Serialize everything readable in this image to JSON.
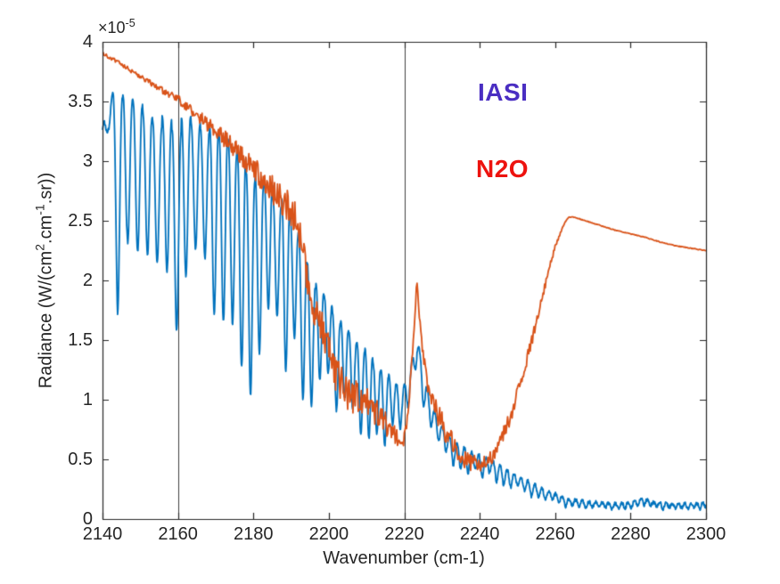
{
  "figure": {
    "background_color": "#ffffff",
    "axes_color": "#262626",
    "marker_line_color": "#404040",
    "offset_label": "×10^-5",
    "offset_parts": [
      {
        "t": "×10"
      },
      {
        "t": "-5",
        "sup": true
      }
    ]
  },
  "chart_data": {
    "type": "line",
    "title": "",
    "xlabel": "Wavenumber (cm-1)",
    "ylabel": "Radiance (W/(cm^2.cm^-1.sr))",
    "ylabel_parts": [
      {
        "t": "Radiance (W/(cm"
      },
      {
        "t": "2",
        "sup": true
      },
      {
        "t": ".cm"
      },
      {
        "t": "-1",
        "sup": true
      },
      {
        "t": ".sr))"
      }
    ],
    "xlim": [
      2140,
      2300
    ],
    "ylim": [
      0,
      4e-05
    ],
    "ylim_display": [
      0,
      4
    ],
    "y_value_scale": "1e-5",
    "x_ticks": [
      2140,
      2160,
      2180,
      2200,
      2220,
      2240,
      2260,
      2280,
      2300
    ],
    "y_ticks": [
      0,
      0.5,
      1,
      1.5,
      2,
      2.5,
      3,
      3.5,
      4
    ],
    "y_tick_labels": [
      "0",
      "0.5",
      "1",
      "1.5",
      "2",
      "2.5",
      "3",
      "3.5",
      "4"
    ],
    "grid": false,
    "box": true,
    "tick_direction": "in",
    "vertical_marker_lines_x": [
      2160,
      2220
    ],
    "legend": {
      "position": "inside-upper-center-right",
      "entries": [
        {
          "label": "IASI",
          "color": "#4a2ec2"
        },
        {
          "label": "N2O",
          "color": "#ed130f"
        }
      ]
    },
    "series": [
      {
        "name": "IASI",
        "color": "#0072BD",
        "line_width": 1.8,
        "units": "1e-5 W/(cm2.cm-1.sr)",
        "representation": "upper/lower envelope with quasi-periodic absorption dips",
        "upper_envelope": [
          [
            2140,
            3.3
          ],
          [
            2141.5,
            3.62
          ],
          [
            2144,
            3.67
          ],
          [
            2146.5,
            3.6
          ],
          [
            2149,
            3.55
          ],
          [
            2152,
            3.5
          ],
          [
            2155,
            3.42
          ],
          [
            2158,
            3.38
          ],
          [
            2161,
            3.36
          ],
          [
            2164,
            3.37
          ],
          [
            2167,
            3.33
          ],
          [
            2170,
            3.3
          ],
          [
            2173,
            3.24
          ],
          [
            2176,
            3.1
          ],
          [
            2179,
            3.0
          ],
          [
            2182,
            2.9
          ],
          [
            2185,
            2.82
          ],
          [
            2188,
            2.72
          ],
          [
            2191,
            2.55
          ],
          [
            2193,
            2.4
          ],
          [
            2196,
            2.05
          ],
          [
            2199,
            1.9
          ],
          [
            2202,
            1.76
          ],
          [
            2205,
            1.62
          ],
          [
            2208,
            1.48
          ],
          [
            2211,
            1.38
          ],
          [
            2214,
            1.28
          ],
          [
            2217,
            1.18
          ],
          [
            2219.5,
            1.08
          ],
          [
            2221.5,
            1.25
          ],
          [
            2223.4,
            1.56
          ],
          [
            2225,
            1.22
          ],
          [
            2227,
            1.0
          ],
          [
            2229,
            0.85
          ],
          [
            2231,
            0.73
          ],
          [
            2234,
            0.64
          ],
          [
            2237,
            0.58
          ],
          [
            2240,
            0.54
          ],
          [
            2243,
            0.49
          ],
          [
            2246,
            0.44
          ],
          [
            2249,
            0.39
          ],
          [
            2252,
            0.34
          ],
          [
            2255,
            0.29
          ],
          [
            2258,
            0.24
          ],
          [
            2261,
            0.2
          ],
          [
            2264,
            0.17
          ],
          [
            2268,
            0.15
          ],
          [
            2272,
            0.14
          ],
          [
            2276,
            0.13
          ],
          [
            2280,
            0.14
          ],
          [
            2283,
            0.18
          ],
          [
            2286,
            0.14
          ],
          [
            2290,
            0.13
          ],
          [
            2294,
            0.13
          ],
          [
            2298,
            0.13
          ],
          [
            2300,
            0.14
          ]
        ],
        "lower_envelope": [
          [
            2140,
            2.95
          ],
          [
            2141.5,
            3.1
          ],
          [
            2144,
            1.6
          ],
          [
            2146.5,
            2.25
          ],
          [
            2149,
            2.05
          ],
          [
            2152,
            1.85
          ],
          [
            2155,
            2.1
          ],
          [
            2158,
            1.7
          ],
          [
            2161,
            1.16
          ],
          [
            2164,
            2.05
          ],
          [
            2167,
            1.85
          ],
          [
            2170,
            1.7
          ],
          [
            2173,
            1.58
          ],
          [
            2176,
            1.38
          ],
          [
            2179,
            1.0
          ],
          [
            2182,
            1.42
          ],
          [
            2185,
            1.28
          ],
          [
            2188,
            1.15
          ],
          [
            2191,
            1.05
          ],
          [
            2194,
            0.98
          ],
          [
            2197,
            0.92
          ],
          [
            2200,
            0.85
          ],
          [
            2203,
            0.79
          ],
          [
            2206,
            0.74
          ],
          [
            2209,
            0.7
          ],
          [
            2212,
            0.66
          ],
          [
            2215,
            0.62
          ],
          [
            2218,
            0.6
          ],
          [
            2221.5,
            1.0
          ],
          [
            2223.4,
            1.32
          ],
          [
            2225,
            0.95
          ],
          [
            2227,
            0.7
          ],
          [
            2229,
            0.58
          ],
          [
            2231,
            0.49
          ],
          [
            2234,
            0.43
          ],
          [
            2237,
            0.38
          ],
          [
            2240,
            0.35
          ],
          [
            2243,
            0.32
          ],
          [
            2246,
            0.29
          ],
          [
            2249,
            0.25
          ],
          [
            2252,
            0.21
          ],
          [
            2255,
            0.17
          ],
          [
            2258,
            0.14
          ],
          [
            2261,
            0.12
          ],
          [
            2264,
            0.1
          ],
          [
            2268,
            0.09
          ],
          [
            2272,
            0.09
          ],
          [
            2276,
            0.08
          ],
          [
            2280,
            0.09
          ],
          [
            2283,
            0.12
          ],
          [
            2286,
            0.09
          ],
          [
            2290,
            0.08
          ],
          [
            2294,
            0.08
          ],
          [
            2298,
            0.08
          ],
          [
            2300,
            0.09
          ]
        ],
        "oscillation": {
          "period_anchors": [
            [
              2140,
              2.7
            ],
            [
              2200,
              2.2
            ],
            [
              2240,
              1.9
            ],
            [
              2300,
              1.6
            ]
          ],
          "valley_sharpness": 2.6,
          "depth_base": 0.62,
          "depth_rand": 0.55,
          "top_jitter": 0.08,
          "noise_amp": 0.015,
          "sample_step": 0.1,
          "seed": 3
        }
      },
      {
        "name": "N2O",
        "color": "#D95319",
        "line_width": 1.8,
        "units": "1e-5 W/(cm2.cm-1.sr)",
        "representation": "smooth trend plus high-frequency noise band",
        "trend": [
          [
            2140,
            3.9
          ],
          [
            2144,
            3.83
          ],
          [
            2148,
            3.75
          ],
          [
            2152,
            3.67
          ],
          [
            2156,
            3.59
          ],
          [
            2160,
            3.52
          ],
          [
            2163,
            3.44
          ],
          [
            2166,
            3.36
          ],
          [
            2169,
            3.28
          ],
          [
            2172,
            3.19
          ],
          [
            2175,
            3.1
          ],
          [
            2178,
            3.0
          ],
          [
            2181,
            2.9
          ],
          [
            2184,
            2.8
          ],
          [
            2187,
            2.7
          ],
          [
            2190,
            2.58
          ],
          [
            2192,
            2.42
          ],
          [
            2194,
            2.1
          ],
          [
            2196,
            1.82
          ],
          [
            2198,
            1.6
          ],
          [
            2200,
            1.38
          ],
          [
            2202,
            1.22
          ],
          [
            2204,
            1.1
          ],
          [
            2206,
            1.02
          ],
          [
            2208,
            1.03
          ],
          [
            2210,
            0.98
          ],
          [
            2212,
            0.92
          ],
          [
            2214,
            0.85
          ],
          [
            2216,
            0.76
          ],
          [
            2218,
            0.67
          ],
          [
            2219.6,
            0.63
          ],
          [
            2221,
            0.85
          ],
          [
            2222.3,
            1.45
          ],
          [
            2223.4,
            2.0
          ],
          [
            2224.4,
            1.55
          ],
          [
            2226,
            1.15
          ],
          [
            2228,
            0.95
          ],
          [
            2230,
            0.8
          ],
          [
            2232,
            0.67
          ],
          [
            2234,
            0.57
          ],
          [
            2236,
            0.51
          ],
          [
            2238,
            0.47
          ],
          [
            2240,
            0.46
          ],
          [
            2242,
            0.48
          ],
          [
            2244,
            0.55
          ],
          [
            2246,
            0.68
          ],
          [
            2248,
            0.85
          ],
          [
            2250,
            1.05
          ],
          [
            2252,
            1.28
          ],
          [
            2254,
            1.52
          ],
          [
            2256,
            1.78
          ],
          [
            2258,
            2.05
          ],
          [
            2260,
            2.28
          ],
          [
            2262,
            2.45
          ],
          [
            2263.5,
            2.53
          ],
          [
            2265,
            2.53
          ],
          [
            2268,
            2.5
          ],
          [
            2272,
            2.46
          ],
          [
            2276,
            2.42
          ],
          [
            2280,
            2.39
          ],
          [
            2284,
            2.36
          ],
          [
            2288,
            2.32
          ],
          [
            2292,
            2.29
          ],
          [
            2296,
            2.27
          ],
          [
            2300,
            2.25
          ]
        ],
        "noise_amp": [
          [
            2140,
            0.015
          ],
          [
            2152,
            0.02
          ],
          [
            2158,
            0.03
          ],
          [
            2163,
            0.045
          ],
          [
            2168,
            0.06
          ],
          [
            2173,
            0.08
          ],
          [
            2178,
            0.09
          ],
          [
            2183,
            0.11
          ],
          [
            2188,
            0.14
          ],
          [
            2193,
            0.17
          ],
          [
            2198,
            0.17
          ],
          [
            2203,
            0.15
          ],
          [
            2208,
            0.13
          ],
          [
            2213,
            0.12
          ],
          [
            2217,
            0.1
          ],
          [
            2220,
            0.07
          ],
          [
            2223.4,
            0.04
          ],
          [
            2226,
            0.08
          ],
          [
            2230,
            0.1
          ],
          [
            2234,
            0.09
          ],
          [
            2238,
            0.07
          ],
          [
            2242,
            0.07
          ],
          [
            2246,
            0.07
          ],
          [
            2250,
            0.06
          ],
          [
            2254,
            0.05
          ],
          [
            2257,
            0.035
          ],
          [
            2260,
            0.02
          ],
          [
            2262,
            0.008
          ],
          [
            2264,
            0.003
          ],
          [
            2300,
            0.003
          ]
        ],
        "sample_step": 0.2,
        "seed": 11
      }
    ]
  }
}
